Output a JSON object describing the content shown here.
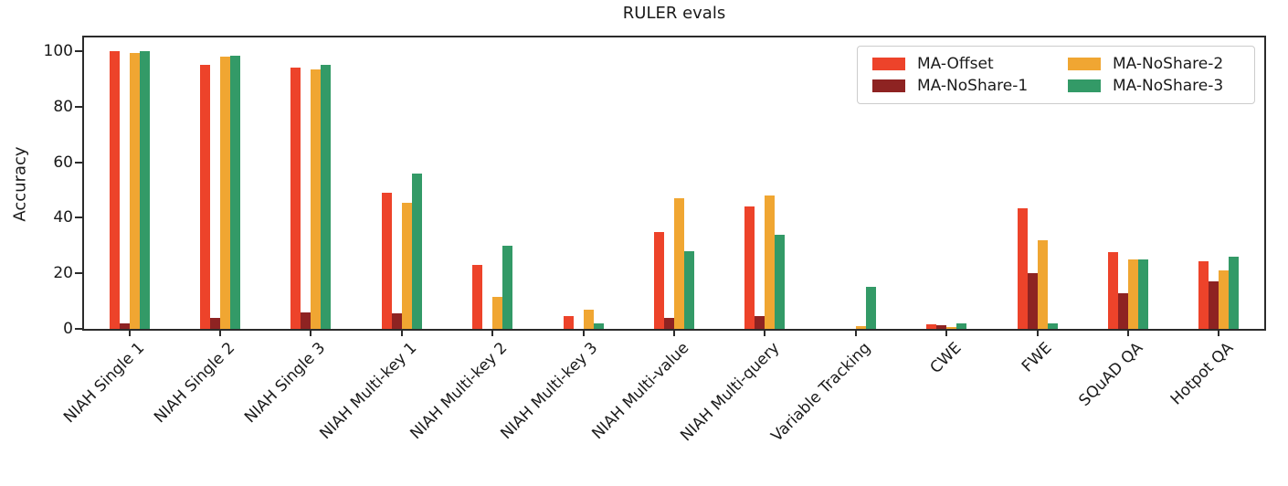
{
  "title": "RULER evals",
  "y_axis": {
    "label": "Accuracy"
  },
  "colors": {
    "axis": "#2b2b2b",
    "text": "#1a1a1a",
    "legend_border": "#cccccc",
    "ma_offset": "#ED432A",
    "ma_noshare_1": "#8E2322",
    "ma_noshare_2": "#F0A632",
    "ma_noshare_3": "#339A67"
  },
  "legend": {
    "items": [
      {
        "label": "MA-Offset",
        "color": "#ED432A"
      },
      {
        "label": "MA-NoShare-1",
        "color": "#8E2322"
      },
      {
        "label": "MA-NoShare-2",
        "color": "#F0A632"
      },
      {
        "label": "MA-NoShare-3",
        "color": "#339A67"
      }
    ]
  },
  "chart_data": {
    "type": "bar",
    "title": "RULER evals",
    "xlabel": "",
    "ylabel": "Accuracy",
    "ylim": [
      0,
      105
    ],
    "yticks": [
      0,
      20,
      40,
      60,
      80,
      100
    ],
    "grid": false,
    "legend_position": "upper right",
    "categories": [
      "NIAH Single 1",
      "NIAH Single 2",
      "NIAH Single 3",
      "NIAH Multi-key 1",
      "NIAH Multi-key 2",
      "NIAH Multi-key 3",
      "NIAH Multi-value",
      "NIAH Multi-query",
      "Variable Tracking",
      "CWE",
      "FWE",
      "SQuAD QA",
      "Hotpot QA"
    ],
    "series": [
      {
        "name": "MA-Offset",
        "color": "#ED432A",
        "values": [
          100,
          95,
          94,
          49,
          23,
          4.5,
          35,
          44,
          0,
          1.5,
          43.5,
          27.5,
          24.5
        ]
      },
      {
        "name": "MA-NoShare-1",
        "color": "#8E2322",
        "values": [
          2,
          4,
          6,
          5.5,
          0,
          0,
          4,
          4.5,
          0,
          1.3,
          20,
          13,
          17
        ]
      },
      {
        "name": "MA-NoShare-2",
        "color": "#F0A632",
        "values": [
          99.5,
          98,
          93.5,
          45.5,
          11.5,
          7,
          47,
          48,
          1,
          0.5,
          32,
          25,
          21
        ]
      },
      {
        "name": "MA-NoShare-3",
        "color": "#339A67",
        "values": [
          100,
          98.3,
          95,
          56,
          30,
          2,
          28,
          34,
          15,
          2,
          2,
          25,
          26
        ]
      }
    ]
  }
}
